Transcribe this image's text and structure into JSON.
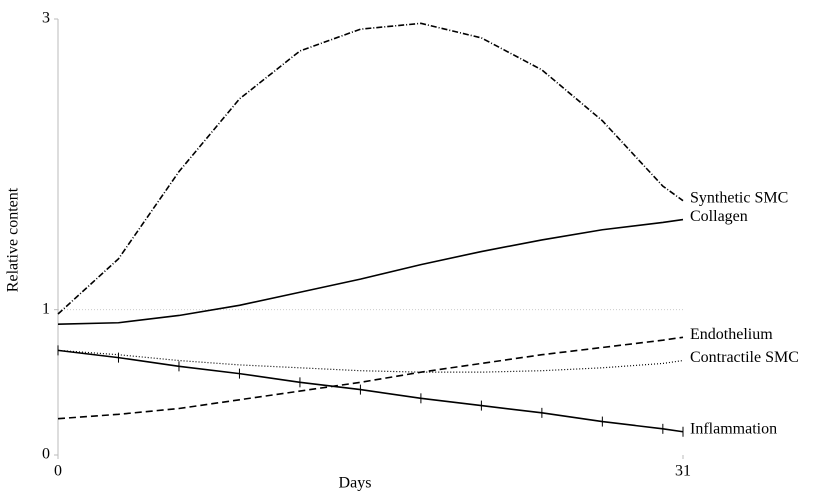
{
  "chart_data": {
    "type": "line",
    "xlabel": "Days",
    "ylabel": "Relative content",
    "x": [
      0,
      3,
      6,
      9,
      12,
      15,
      18,
      21,
      24,
      27,
      30,
      31
    ],
    "xlim": [
      0,
      31
    ],
    "xticks": [
      0,
      31
    ],
    "ylim": [
      0,
      3
    ],
    "yticks": [
      0,
      1,
      3
    ],
    "reference_line": 1,
    "series": [
      {
        "name": "Synthetic SMC",
        "color": "#000000",
        "style": "dashdot",
        "values": [
          0.97,
          1.35,
          1.95,
          2.45,
          2.78,
          2.93,
          2.97,
          2.87,
          2.65,
          2.3,
          1.85,
          1.75
        ]
      },
      {
        "name": "Collagen",
        "color": "#000000",
        "style": "solid",
        "values": [
          0.9,
          0.91,
          0.96,
          1.03,
          1.12,
          1.21,
          1.31,
          1.4,
          1.48,
          1.55,
          1.6,
          1.62
        ]
      },
      {
        "name": "Endothelium",
        "color": "#000000",
        "style": "dashed",
        "values": [
          0.25,
          0.28,
          0.32,
          0.38,
          0.44,
          0.5,
          0.57,
          0.63,
          0.69,
          0.74,
          0.79,
          0.81
        ]
      },
      {
        "name": "Contractile SMC",
        "color": "#000000",
        "style": "dotted",
        "values": [
          0.72,
          0.69,
          0.65,
          0.62,
          0.6,
          0.58,
          0.57,
          0.57,
          0.58,
          0.6,
          0.63,
          0.65
        ]
      },
      {
        "name": "Inflammation",
        "color": "#000000",
        "style": "ticks",
        "values": [
          0.72,
          0.67,
          0.61,
          0.56,
          0.5,
          0.45,
          0.39,
          0.34,
          0.29,
          0.23,
          0.18,
          0.16
        ]
      }
    ]
  }
}
